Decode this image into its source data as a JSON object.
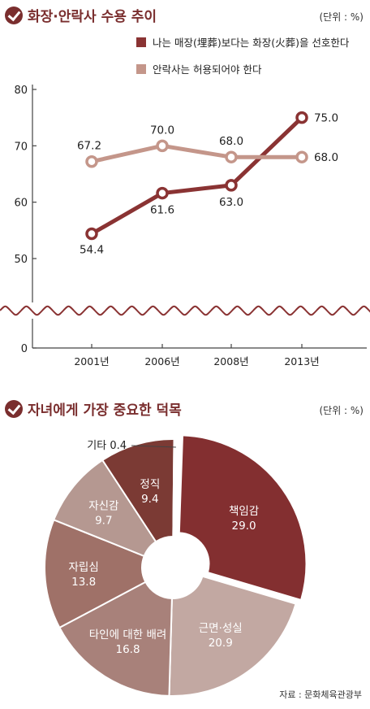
{
  "chart1": {
    "title": "화장·안락사 수용 추이",
    "unit": "(단위 : %)",
    "legend": [
      "나는 매장(埋葬)보다는 화장(火葬)을 선호한다",
      "안락사는 허용되어야 한다"
    ],
    "colors": {
      "cremation": "#8a3333",
      "euthanasia": "#c4968a"
    }
  },
  "chart2": {
    "title": "자녀에게 가장 중요한 덕목",
    "unit": "(단위 : %)"
  },
  "source": "자료 : 문화체육관광부",
  "chart_data": [
    {
      "type": "line",
      "title": "화장·안락사 수용 추이",
      "unit": "(단위 : %)",
      "x": [
        "2001년",
        "2006년",
        "2008년",
        "2013년"
      ],
      "yticks": [
        0,
        50,
        60,
        70,
        80
      ],
      "ylim": [
        0,
        80
      ],
      "axis_break": true,
      "grid": false,
      "series": [
        {
          "name": "나는 매장(埋葬)보다는 화장(火葬)을 선호한다",
          "values": [
            54.4,
            61.6,
            63.0,
            75.0
          ],
          "labels": [
            "54.4",
            "61.6",
            "63.0",
            "75.0"
          ],
          "color": "#8a3333"
        },
        {
          "name": "안락사는 허용되어야 한다",
          "values": [
            67.2,
            70.0,
            68.0,
            68.0
          ],
          "labels": [
            "67.2",
            "70.0",
            "68.0",
            "68.0"
          ],
          "color": "#c4968a"
        }
      ]
    },
    {
      "type": "pie",
      "title": "자녀에게 가장 중요한 덕목",
      "unit": "(단위 : %)",
      "donut": true,
      "slices": [
        {
          "label": "책임감",
          "value": 29.0,
          "text": "29.0",
          "color": "#832f30"
        },
        {
          "label": "근면·성실",
          "value": 20.9,
          "text": "20.9",
          "color": "#c2a8a2"
        },
        {
          "label": "타인에 대한 배려",
          "value": 16.8,
          "text": "16.8",
          "color": "#a8817a"
        },
        {
          "label": "자립심",
          "value": 13.8,
          "text": "13.8",
          "color": "#9f7168"
        },
        {
          "label": "자신감",
          "value": 9.7,
          "text": "9.7",
          "color": "#b59891"
        },
        {
          "label": "정직",
          "value": 9.4,
          "text": "9.4",
          "color": "#7b3a34"
        },
        {
          "label": "기타",
          "value": 0.4,
          "text": "0.4",
          "color": "#ffffff"
        }
      ]
    }
  ]
}
